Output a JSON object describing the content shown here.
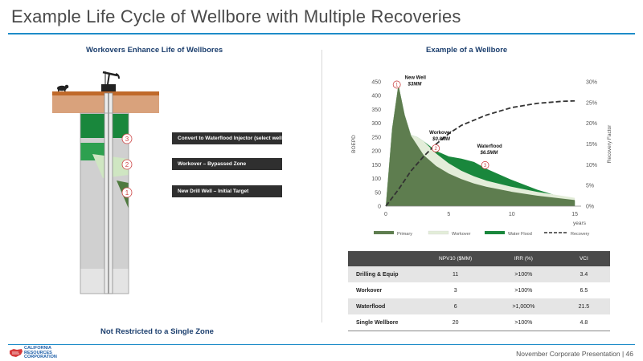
{
  "slide": {
    "title": "Example Life Cycle of Wellbore with Multiple Recoveries",
    "left_heading": "Workovers Enhance Life of Wellbores",
    "left_footer": "Not Restricted to a Single Zone",
    "right_heading": "Example of a Wellbore",
    "footer_text": "November Corporate Presentation  |  46",
    "logo_text": [
      "CALIFORNIA",
      "RESOURCES",
      "CORPORATION"
    ]
  },
  "wellbore": {
    "zones": [
      {
        "number": "3",
        "label": "Convert to Waterflood Injector (select wells)"
      },
      {
        "number": "2",
        "label": "Workover – Bypassed Zone"
      },
      {
        "number": "1",
        "label": "New Drill Well – Initial Target"
      }
    ]
  },
  "chart_data": {
    "type": "area",
    "x_label": "years",
    "y_label": "BOEPD",
    "y2_label": "Recovery Factor",
    "x_ticks": [
      "0",
      "5",
      "10",
      "15"
    ],
    "x_range": [
      0,
      15.5
    ],
    "y_ticks": [
      "0",
      "50",
      "100",
      "150",
      "200",
      "250",
      "300",
      "350",
      "400",
      "450"
    ],
    "y_range": [
      0,
      450
    ],
    "y2_ticks": [
      "0%",
      "5%",
      "10%",
      "15%",
      "20%",
      "25%",
      "30%"
    ],
    "y2_range": [
      0,
      30
    ],
    "series": [
      {
        "name": "Primary",
        "color": "#5e7d4f",
        "x": [
          0,
          0.5,
          1.0,
          1.5,
          2,
          3,
          4,
          5,
          6,
          7,
          8,
          10,
          12,
          15
        ],
        "y": [
          0,
          280,
          440,
          330,
          255,
          185,
          145,
          118,
          98,
          82,
          70,
          52,
          38,
          22
        ]
      },
      {
        "name": "Workover",
        "color": "#e3edd9",
        "x": [
          0,
          0.5,
          1.0,
          1.5,
          2,
          2.5,
          3,
          4,
          5,
          6,
          7,
          8,
          10,
          12,
          15
        ],
        "y": [
          0,
          280,
          440,
          330,
          258,
          250,
          235,
          190,
          155,
          128,
          108,
          92,
          70,
          52,
          30
        ]
      },
      {
        "name": "Water Flood",
        "color": "#19873c",
        "x": [
          0,
          0.5,
          1.0,
          1.5,
          2,
          2.5,
          3,
          4,
          5,
          6,
          7,
          8,
          10,
          12,
          15
        ],
        "y": [
          0,
          280,
          440,
          330,
          258,
          250,
          235,
          200,
          180,
          172,
          160,
          135,
          95,
          60,
          18
        ]
      },
      {
        "name": "Recovery",
        "color": "#333333",
        "dashed": true,
        "axis": "y2",
        "x": [
          0,
          1,
          2,
          3,
          4,
          5,
          6,
          8,
          10,
          12,
          14,
          15
        ],
        "y": [
          0,
          4,
          8.5,
          12,
          15,
          17.5,
          19.5,
          22,
          23.8,
          24.8,
          25.3,
          25.4
        ]
      }
    ],
    "annotations": [
      {
        "number": "1",
        "label": "New Well",
        "value": "$3MM",
        "x": 1.0,
        "y": 440
      },
      {
        "number": "2",
        "label": "Workover",
        "value": "$0.8MM",
        "x": 3.2,
        "y": 250
      },
      {
        "number": "3",
        "label": "Waterflood",
        "value": "$6.5MM",
        "x": 7.5,
        "y": 195
      }
    ]
  },
  "table": {
    "headers": [
      "",
      "NPV10 ($MM)",
      "IRR (%)",
      "VCI"
    ],
    "rows": [
      [
        "Drilling & Equip",
        "11",
        ">100%",
        "3.4"
      ],
      [
        "Workover",
        "3",
        ">100%",
        "6.5"
      ],
      [
        "Waterflood",
        "6",
        ">1,000%",
        "21.5"
      ],
      [
        "Single Wellbore",
        "20",
        ">100%",
        "4.8"
      ]
    ]
  }
}
